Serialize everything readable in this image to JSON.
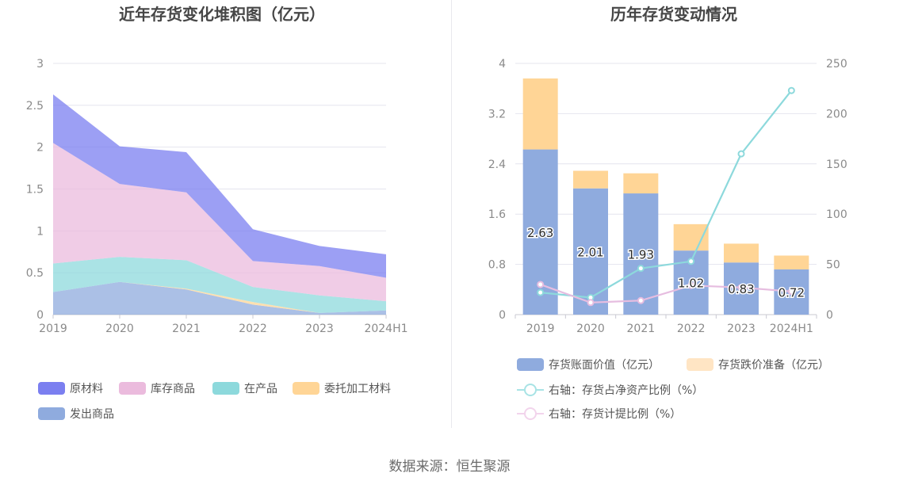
{
  "source_text": "数据来源：恒生聚源",
  "chart_data": [
    {
      "type": "area",
      "stacked": true,
      "title": "近年存货变化堆积图（亿元）",
      "categories": [
        "2019",
        "2020",
        "2021",
        "2022",
        "2023",
        "2024H1"
      ],
      "y_ticks": [
        "0",
        "0.5",
        "1",
        "1.5",
        "2",
        "2.5",
        "3"
      ],
      "ylim": [
        0,
        3
      ],
      "grid": true,
      "legend_position": "bottom",
      "series": [
        {
          "name": "发出商品",
          "color": "#8fabde",
          "values": [
            0.27,
            0.39,
            0.3,
            0.12,
            0.02,
            0.05
          ]
        },
        {
          "name": "委托加工材料",
          "color": "#ffd596",
          "values": [
            0.0,
            0.0,
            0.01,
            0.03,
            0.0,
            0.0
          ]
        },
        {
          "name": "在产品",
          "color": "#8dd9dc",
          "values": [
            0.34,
            0.3,
            0.34,
            0.18,
            0.21,
            0.11
          ]
        },
        {
          "name": "库存商品",
          "color": "#ebbbdd",
          "values": [
            1.44,
            0.87,
            0.81,
            0.31,
            0.35,
            0.28
          ]
        },
        {
          "name": "原材料",
          "color": "#7b7ff0",
          "values": [
            0.58,
            0.45,
            0.48,
            0.38,
            0.24,
            0.28
          ]
        }
      ],
      "legend_order": [
        "原材料",
        "库存商品",
        "在产品",
        "委托加工材料",
        "发出商品"
      ]
    },
    {
      "type": "bar",
      "stacked": true,
      "title": "历年存货变动情况",
      "categories": [
        "2019",
        "2020",
        "2021",
        "2022",
        "2023",
        "2024H1"
      ],
      "y_ticks": [
        "0",
        "0.8",
        "1.6",
        "2.4",
        "3.2",
        "4"
      ],
      "ylim": [
        0,
        4
      ],
      "y2_ticks": [
        "0",
        "50",
        "100",
        "150",
        "200",
        "250"
      ],
      "y2lim": [
        0,
        250
      ],
      "grid": true,
      "legend_position": "bottom",
      "series": [
        {
          "name": "存货账面价值（亿元）",
          "color": "#8fabde",
          "axis": "left",
          "values": [
            2.63,
            2.01,
            1.93,
            1.02,
            0.83,
            0.72
          ],
          "labels": [
            "2.63",
            "2.01",
            "1.93",
            "1.02",
            "0.83",
            "0.72"
          ]
        },
        {
          "name": "存货跌价准备（亿元）",
          "color": "#ffd596",
          "axis": "left",
          "values": [
            1.13,
            0.28,
            0.32,
            0.42,
            0.3,
            0.22
          ]
        }
      ],
      "line_series": [
        {
          "name": "右轴：存货占净资产比例（%）",
          "color": "#8dd9dc",
          "axis": "right",
          "values": [
            22,
            17,
            46,
            53,
            160,
            223
          ]
        },
        {
          "name": "右轴：存货计提比例（%）",
          "color": "#e6bde0",
          "axis": "right",
          "values": [
            30,
            12,
            14,
            29,
            27,
            23
          ]
        }
      ],
      "legend_light_colors": {
        "存货跌价准备（亿元）": "#ffe5c4",
        "line_a": "#a8e3e5",
        "line_b": "#f2d4ec"
      }
    }
  ]
}
